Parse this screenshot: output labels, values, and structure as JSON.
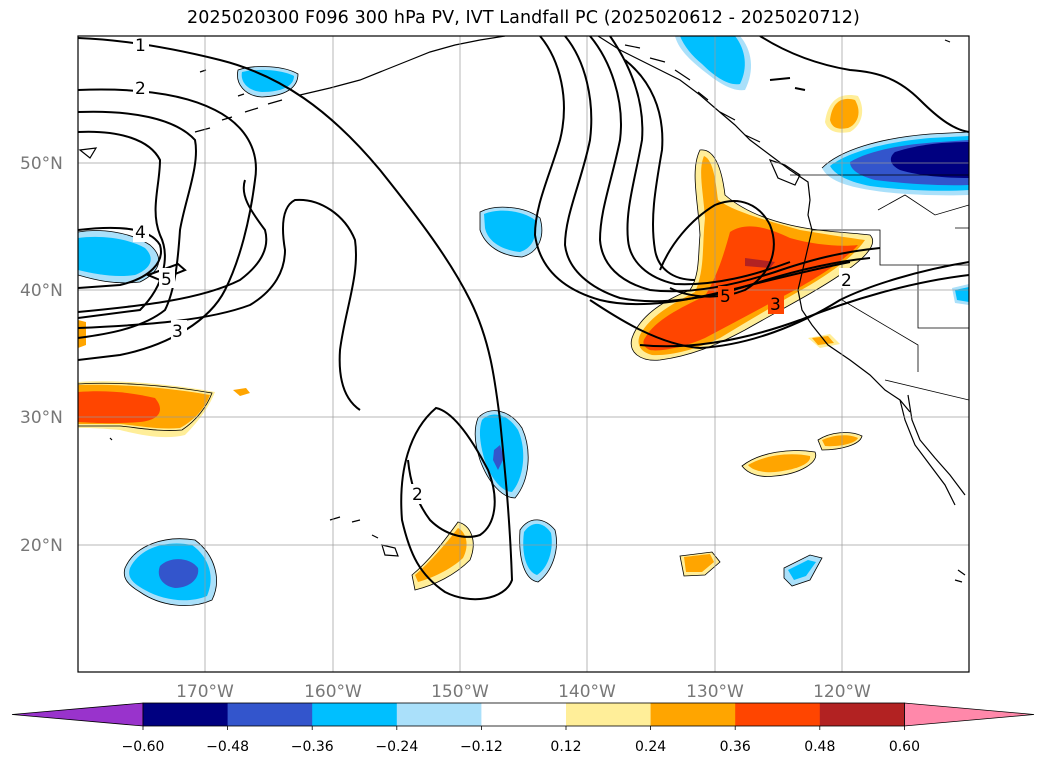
{
  "title": "2025020300 F096 300 hPa PV, IVT Landfall PC (2025020612 - 2025020712)",
  "map": {
    "projection": "PlateCarree",
    "extent": {
      "lon_min": -180,
      "lon_max": -110,
      "lat_min": 10,
      "lat_max": 60
    },
    "gridlines": true,
    "lat_ticks": [
      "50°N",
      "40°N",
      "30°N",
      "20°N"
    ],
    "lon_ticks": [
      "170°W",
      "160°W",
      "150°W",
      "140°W",
      "130°W",
      "120°W"
    ]
  },
  "contour_labels": [
    "1",
    "2",
    "3",
    "4",
    "5",
    "5",
    "3",
    "2",
    "2"
  ],
  "colorbar": {
    "tick_labels": [
      "−0.60",
      "−0.48",
      "−0.36",
      "−0.24",
      "−0.12",
      "0.12",
      "0.24",
      "0.36",
      "0.48",
      "0.60"
    ],
    "levels": [
      -0.6,
      -0.48,
      -0.36,
      -0.24,
      -0.12,
      0.12,
      0.24,
      0.36,
      0.48,
      0.6
    ],
    "colors": [
      "#9933cc",
      "#000080",
      "#3355cc",
      "#00bfff",
      "#aae0fa",
      "#ffffff",
      "#ffee99",
      "#ffa500",
      "#ff4500",
      "#b22222",
      "#ff88aa"
    ],
    "extend": "both"
  }
}
